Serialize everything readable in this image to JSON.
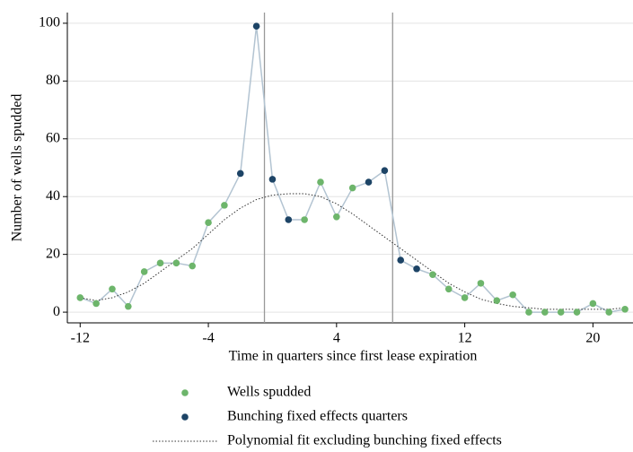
{
  "chart_data": {
    "type": "scatter",
    "xlabel": "Time in quarters since first lease expiration",
    "ylabel": "Number of wells spudded",
    "x": [
      -12,
      -11,
      -10,
      -9,
      -8,
      -7,
      -6,
      -5,
      -4,
      -3,
      -2,
      -1,
      0,
      1,
      2,
      3,
      4,
      5,
      6,
      7,
      8,
      9,
      10,
      11,
      12,
      13,
      14,
      15,
      16,
      17,
      18,
      19,
      20,
      21,
      22
    ],
    "series": [
      {
        "name": "Wells spudded",
        "color": "#6db56b",
        "values": [
          5,
          3,
          8,
          2,
          14,
          17,
          17,
          16,
          31,
          37,
          null,
          null,
          null,
          null,
          32,
          45,
          33,
          43,
          null,
          null,
          null,
          null,
          13,
          8,
          5,
          10,
          4,
          6,
          0,
          0,
          0,
          0,
          3,
          0,
          1
        ]
      },
      {
        "name": "Bunching fixed effects quarters",
        "color": "#1d4466",
        "values": [
          null,
          null,
          null,
          null,
          null,
          null,
          null,
          null,
          null,
          null,
          48,
          99,
          46,
          32,
          null,
          null,
          null,
          null,
          45,
          49,
          18,
          15,
          null,
          null,
          null,
          null,
          null,
          null,
          null,
          null,
          null,
          null,
          null,
          null,
          null
        ]
      },
      {
        "name": "Polynomial fit excluding bunching fixed effects",
        "color": "#333333",
        "values": [
          5,
          4,
          5,
          7,
          10,
          14,
          18,
          22,
          27,
          32,
          36,
          39,
          40.5,
          41,
          41,
          40,
          37.5,
          34,
          30,
          26,
          22,
          18,
          14,
          10,
          7,
          4.5,
          3,
          2,
          1.5,
          1,
          1,
          1,
          1,
          1,
          1.5
        ]
      }
    ],
    "connector_color": "#b3c4d2",
    "vlines": [
      -0.5,
      7.5
    ],
    "xlim": [
      -12.8,
      22.5
    ],
    "ylim": [
      -3.7,
      103.7
    ],
    "xticks": [
      -12,
      -4,
      4,
      12,
      20
    ],
    "yticks": [
      0,
      20,
      40,
      60,
      80,
      100
    ],
    "grid": true
  }
}
